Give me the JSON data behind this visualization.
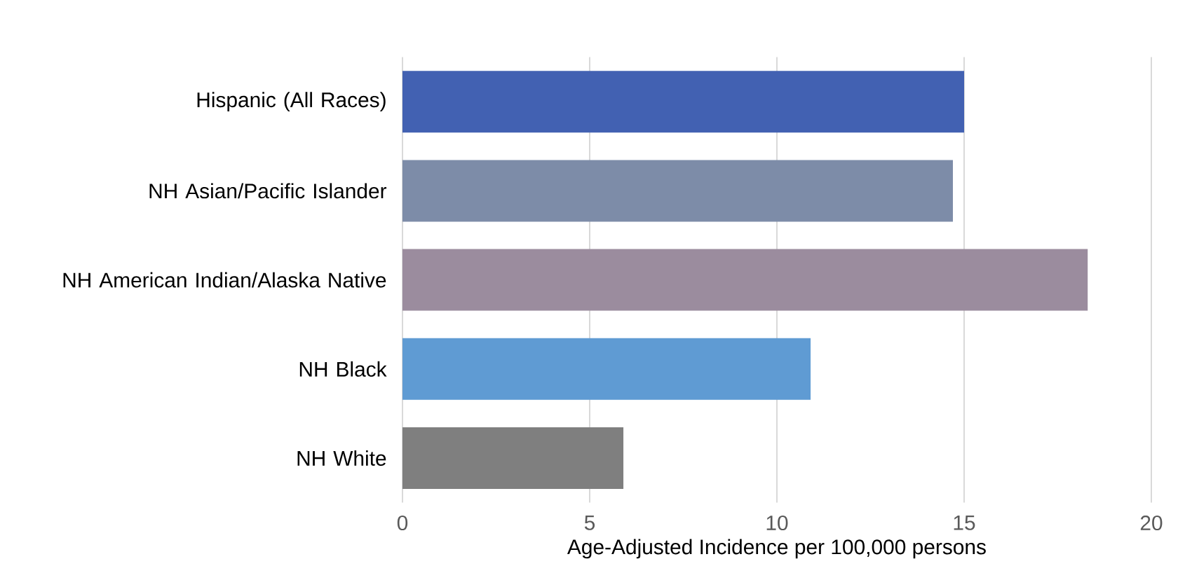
{
  "chart_data": {
    "type": "bar",
    "orientation": "horizontal",
    "xlabel": "Age-Adjusted Incidence per 100,000 persons",
    "categories": [
      "Hispanic (All Races)",
      "NH Asian/Pacific Islander",
      "NH American Indian/Alaska Native",
      "NH Black",
      "NH White"
    ],
    "values": [
      15.0,
      14.7,
      18.3,
      10.9,
      5.9
    ],
    "colors": [
      "#4261b2",
      "#7d8ca8",
      "#9b8c9e",
      "#5f9bd3",
      "#7f7f7f"
    ],
    "xlim": [
      0,
      20
    ],
    "xticks": [
      0,
      5,
      10,
      15,
      20
    ],
    "grid": "x"
  }
}
